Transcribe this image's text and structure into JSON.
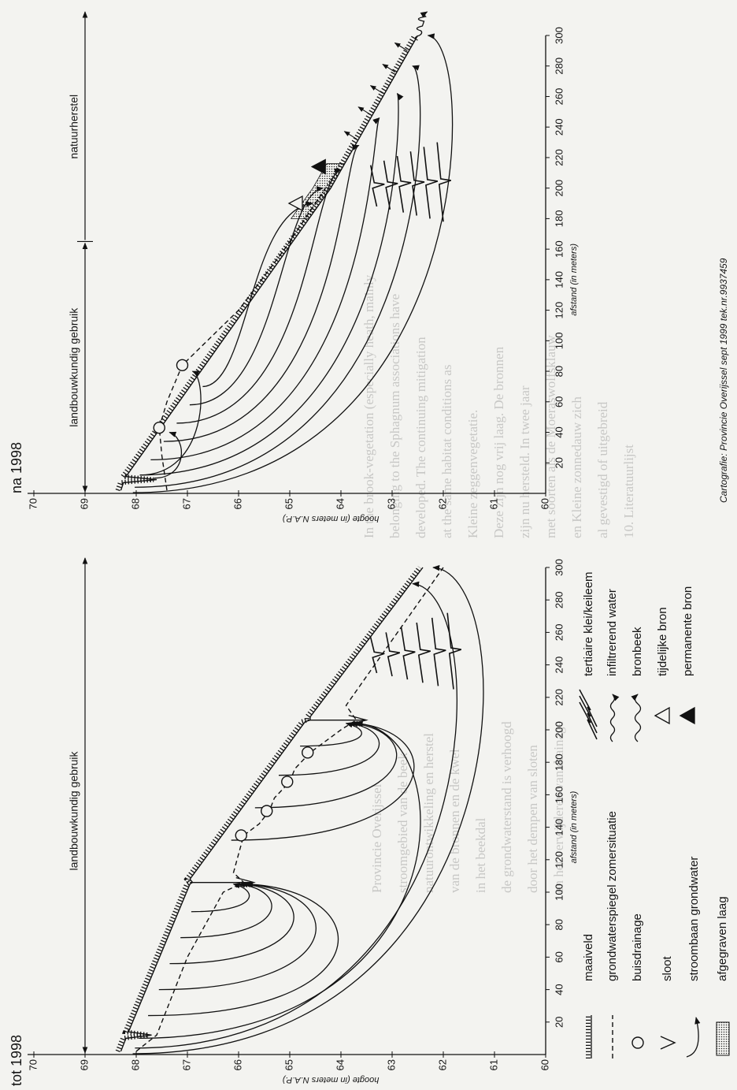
{
  "diagrams": [
    {
      "title": "tot 1998",
      "y_axis_label": "hoogte (in meters N.A.P.)",
      "x_axis_label": "afstand (in meters)",
      "use_labels": [
        "landbouwkundig gebruik"
      ],
      "ylim": [
        60,
        70
      ],
      "yticks": [
        60,
        61,
        62,
        63,
        64,
        65,
        66,
        67,
        68,
        69,
        70
      ],
      "xlim": [
        0,
        300
      ],
      "xticks": [
        20,
        40,
        60,
        80,
        100,
        120,
        140,
        160,
        180,
        200,
        220,
        240,
        260,
        280,
        300
      ]
    },
    {
      "title": "na 1998",
      "y_axis_label": "hoogte (in meters N.A.P.)",
      "x_axis_label": "afstand (in meters)",
      "use_labels": [
        "landbouwkundig gebruik",
        "natuurherstel"
      ],
      "ylim": [
        60,
        70
      ],
      "yticks": [
        60,
        61,
        62,
        63,
        64,
        65,
        66,
        67,
        68,
        69,
        70
      ],
      "xlim": [
        0,
        300
      ],
      "xticks": [
        20,
        40,
        60,
        80,
        100,
        120,
        140,
        160,
        180,
        200,
        220,
        240,
        260,
        280,
        300
      ]
    }
  ],
  "legend": {
    "column_1": [
      "maaiveld",
      "grondwaterspiegel zomersituatie",
      "buisdrainage",
      "sloot",
      "stroombaan grondwater",
      "afgegraven laag"
    ],
    "column_2": [
      "tertiaire klei/keileem",
      "infiltrerend water",
      "bronbeek",
      "tijdelijke bron",
      "permanente bron"
    ]
  },
  "credit": "Cartografie: Provincie Overijssel sept 1999 tek.nr.9937459",
  "background_text": {
    "right": [
      "In the brook-vegetation (especially heath, mainly",
      "belonging to the Sphagnum associations have",
      "developed. The continuing mitigation",
      "at the same habitat conditions as",
      "Kleine zeggenvegetatie.",
      "Deze zijn nog vrij laag. De bronnen",
      "zijn nu hersteld. In twee jaar",
      "met soorten als de Moeraswolfsklauw",
      "en Kleine zonnedauw zich",
      "al gevestigd of uitgebreid",
      "10. Literatuurlijst"
    ],
    "left": [
      "Provincie Overijssel",
      "stroomgebied van de beek",
      "natuurontwikkeling en herstel",
      "van de bronnen en de kwel",
      "in het beekdal",
      "de grondwaterstand is verhoogd",
      "door het dempen van sloten",
      "en het verwijderen van drainage"
    ]
  }
}
